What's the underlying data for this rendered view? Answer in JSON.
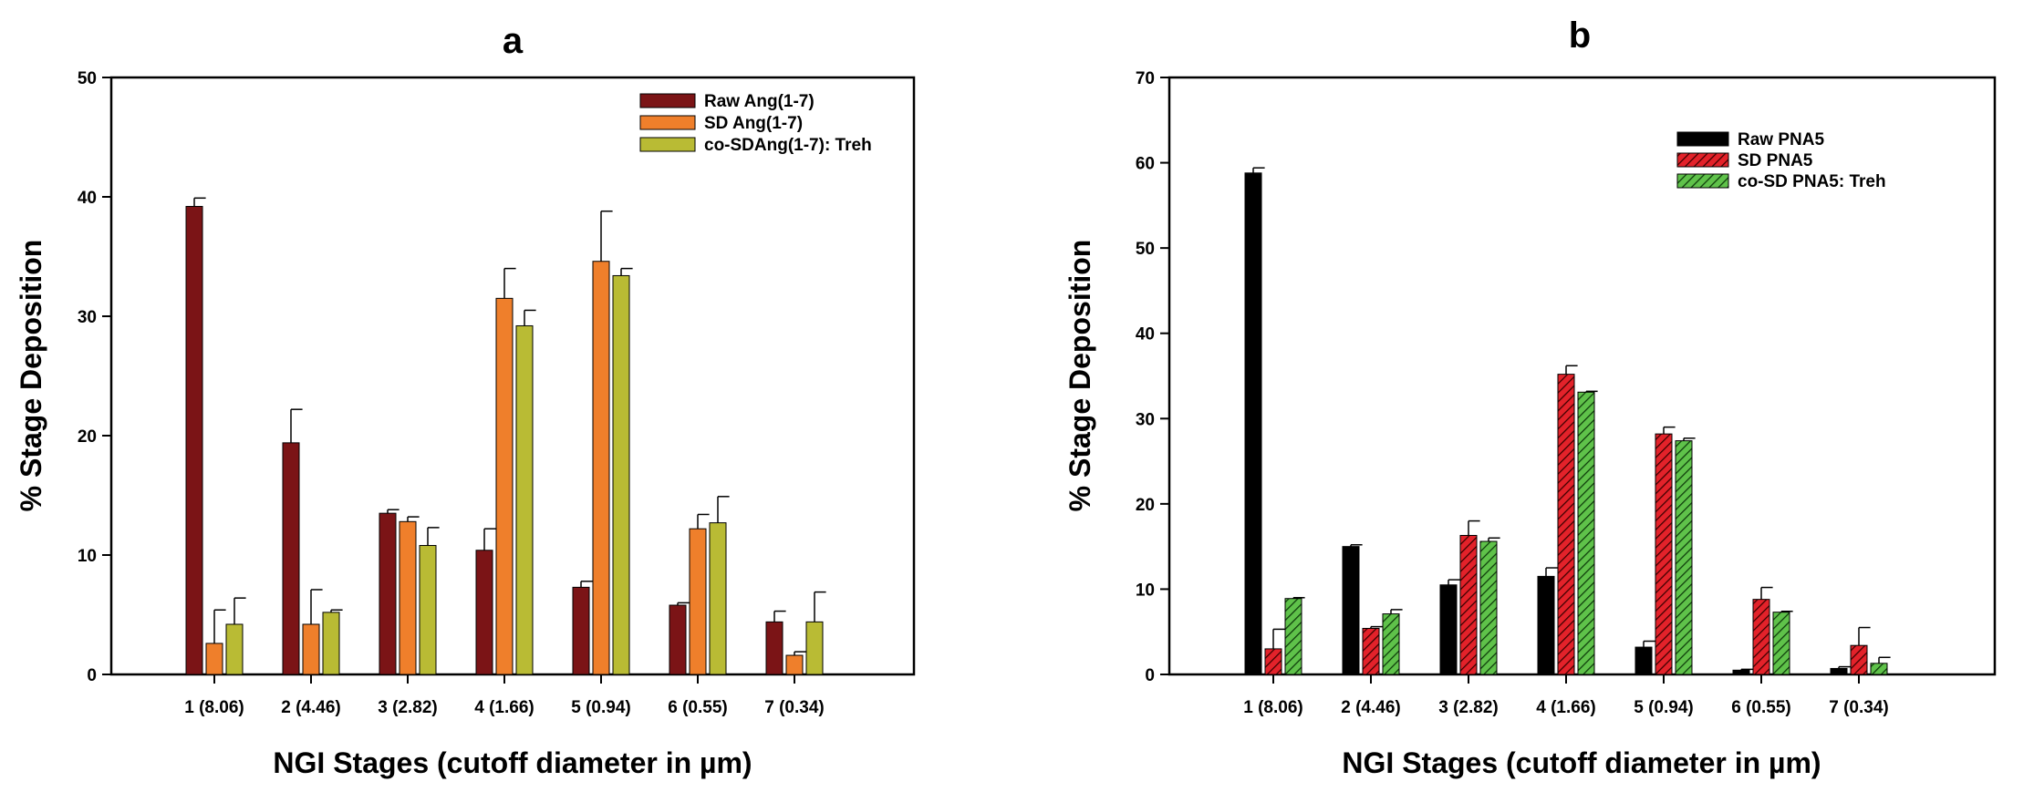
{
  "chart_data": [
    {
      "type": "bar",
      "title": "a",
      "xlabel": "NGI Stages (cutoff diameter in µm)",
      "ylabel": "% Stage Deposition",
      "ylim": [
        0,
        50
      ],
      "yticks": [
        0,
        10,
        20,
        30,
        40,
        50
      ],
      "grid": false,
      "legend_position": "top-right",
      "categories": [
        "1 (8.06)",
        "2 (4.46)",
        "3 (2.82)",
        "4 (1.66)",
        "5 (0.94)",
        "6 (0.55)",
        "7 (0.34)"
      ],
      "series": [
        {
          "name": "Raw Ang(1-7)",
          "color": "#7b1416",
          "pattern": "solid",
          "values": [
            39.2,
            19.4,
            13.5,
            10.4,
            7.3,
            5.8,
            4.4
          ],
          "errors": [
            0.7,
            2.8,
            0.3,
            1.8,
            0.5,
            0.2,
            0.9
          ]
        },
        {
          "name": "SD Ang(1-7)",
          "color": "#ef7f2b",
          "pattern": "solid",
          "values": [
            2.6,
            4.2,
            12.8,
            31.5,
            34.6,
            12.2,
            1.6
          ],
          "errors": [
            2.8,
            2.9,
            0.4,
            2.5,
            4.2,
            1.2,
            0.3
          ]
        },
        {
          "name": "co-SDAng(1-7): Treh",
          "color": "#b9bb34",
          "pattern": "solid",
          "values": [
            4.2,
            5.2,
            10.8,
            29.2,
            33.4,
            12.7,
            4.4
          ],
          "errors": [
            2.2,
            0.2,
            1.5,
            1.3,
            0.6,
            2.2,
            2.5
          ]
        }
      ]
    },
    {
      "type": "bar",
      "title": "b",
      "xlabel": "NGI Stages (cutoff diameter in µm)",
      "ylabel": "% Stage Deposition",
      "ylim": [
        0,
        70
      ],
      "yticks": [
        0,
        10,
        20,
        30,
        40,
        50,
        60,
        70
      ],
      "grid": false,
      "legend_position": "top-right",
      "categories": [
        "1 (8.06)",
        "2 (4.46)",
        "3 (2.82)",
        "4 (1.66)",
        "5 (0.94)",
        "6 (0.55)",
        "7 (0.34)"
      ],
      "series": [
        {
          "name": "Raw PNA5",
          "color": "#000000",
          "pattern": "solid",
          "values": [
            58.8,
            15.0,
            10.5,
            11.5,
            3.2,
            0.5,
            0.7
          ],
          "errors": [
            0.6,
            0.2,
            0.6,
            1.0,
            0.7,
            0.1,
            0.2
          ]
        },
        {
          "name": "SD PNA5",
          "color": "#e3222a",
          "pattern": "hatch",
          "values": [
            3.0,
            5.4,
            16.3,
            35.2,
            28.2,
            8.8,
            3.4
          ],
          "errors": [
            2.3,
            0.2,
            1.7,
            1.0,
            0.8,
            1.4,
            2.1
          ]
        },
        {
          "name": "co-SD PNA5: Treh",
          "color": "#5fc24a",
          "pattern": "hatch",
          "values": [
            8.9,
            7.1,
            15.6,
            33.1,
            27.4,
            7.3,
            1.3
          ],
          "errors": [
            0.1,
            0.5,
            0.4,
            0.1,
            0.3,
            0.1,
            0.7
          ]
        }
      ]
    }
  ]
}
